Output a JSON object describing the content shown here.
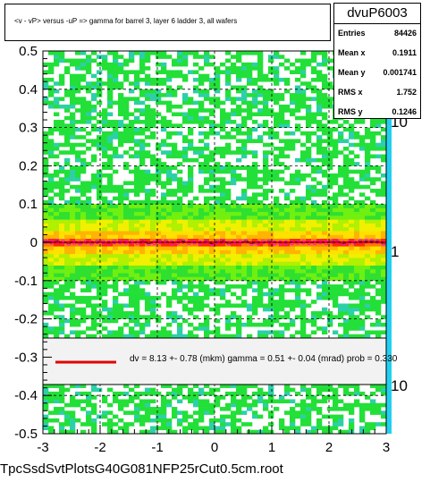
{
  "chart_data": {
    "type": "heatmap",
    "title": "<v - vP>      versus  -uP =>  gamma for barrel 3, layer 6 ladder 3, all wafers",
    "xlim": [
      -3,
      3
    ],
    "ylim": [
      -0.5,
      0.5
    ],
    "x_ticks": [
      "-3",
      "-2",
      "-1",
      "0",
      "1",
      "2",
      "3"
    ],
    "y_ticks": [
      "-0.5",
      "-0.4",
      "-0.3",
      "-0.2",
      "-0.1",
      "0",
      "0.1",
      "0.2",
      "0.3",
      "0.4",
      "0.5"
    ],
    "colorbar_ticks": [
      "10",
      "1",
      "10"
    ],
    "grid": true,
    "profile_level": 0.0
  },
  "stats": {
    "name": "dvuP6003",
    "entries_label": "Entries",
    "entries_value": "84426",
    "mean_x_label": "Mean x",
    "mean_x_value": "0.1911",
    "mean_y_label": "Mean y",
    "mean_y_value": "0.001741",
    "rms_x_label": "RMS x",
    "rms_x_value": "1.752",
    "rms_y_label": "RMS y",
    "rms_y_value": "0.1246"
  },
  "fit": {
    "text": "dv =    8.13 +-  0.78 (mkm) gamma =    0.51 +-  0.04 (mrad) prob = 0.330",
    "line_color": "#e00000"
  },
  "file_name": "TpcSsdSvtPlotsG40G081NFP25rCut0.5cm.root"
}
